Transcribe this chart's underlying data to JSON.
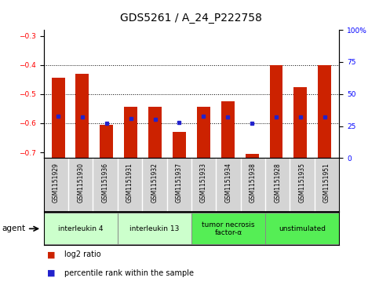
{
  "title": "GDS5261 / A_24_P222758",
  "samples": [
    "GSM1151929",
    "GSM1151930",
    "GSM1151936",
    "GSM1151931",
    "GSM1151932",
    "GSM1151937",
    "GSM1151933",
    "GSM1151934",
    "GSM1151938",
    "GSM1151928",
    "GSM1151935",
    "GSM1151951"
  ],
  "log2_ratio": [
    -0.445,
    -0.43,
    -0.605,
    -0.545,
    -0.545,
    -0.63,
    -0.545,
    -0.525,
    -0.705,
    -0.4,
    -0.475,
    -0.4
  ],
  "percentile_rank": [
    33,
    32,
    27,
    31,
    30,
    28,
    33,
    32,
    27,
    32,
    32,
    32
  ],
  "bar_color": "#cc2200",
  "dot_color": "#2222cc",
  "ylim_left": [
    -0.72,
    -0.28
  ],
  "ylim_right": [
    0,
    100
  ],
  "yticks_left": [
    -0.7,
    -0.6,
    -0.5,
    -0.4,
    -0.3
  ],
  "yticks_right": [
    0,
    25,
    50,
    75,
    100
  ],
  "groups": [
    {
      "label": "interleukin 4",
      "span": [
        0,
        3
      ],
      "color": "#ccffcc"
    },
    {
      "label": "interleukin 13",
      "span": [
        3,
        6
      ],
      "color": "#ccffcc"
    },
    {
      "label": "tumor necrosis\nfactor-α",
      "span": [
        6,
        9
      ],
      "color": "#55ee55"
    },
    {
      "label": "unstimulated",
      "span": [
        9,
        12
      ],
      "color": "#55ee55"
    }
  ],
  "agent_label": "agent",
  "legend_log2": "log2 ratio",
  "legend_pct": "percentile rank within the sample",
  "bg_color": "#ffffff",
  "grid_color": "#000000",
  "bar_width": 0.55,
  "title_fontsize": 10,
  "tick_fontsize": 6.5,
  "label_fontsize": 7.5
}
